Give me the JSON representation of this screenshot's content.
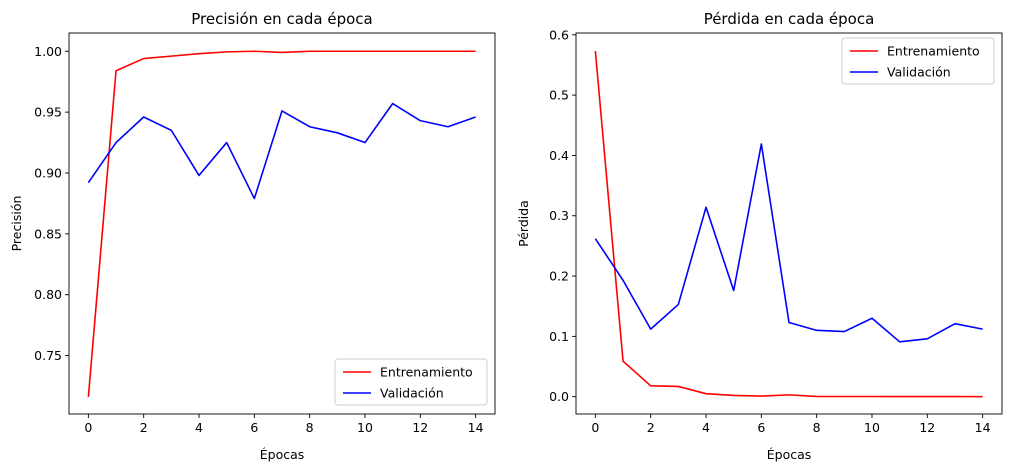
{
  "chart_data": [
    {
      "type": "line",
      "title": "Precisión en cada época",
      "xlabel": "Épocas",
      "ylabel": "Precisión",
      "x": [
        0,
        1,
        2,
        3,
        4,
        5,
        6,
        7,
        8,
        9,
        10,
        11,
        12,
        13,
        14
      ],
      "xticks": [
        0,
        2,
        4,
        6,
        8,
        10,
        12,
        14
      ],
      "yticks": [
        0.75,
        0.8,
        0.85,
        0.9,
        0.95,
        1.0
      ],
      "ytick_labels": [
        "0.75",
        "0.80",
        "0.85",
        "0.90",
        "0.95",
        "1.00"
      ],
      "xlim": [
        -0.7,
        14.7
      ],
      "ylim": [
        0.702,
        1.015
      ],
      "legend_position": "lower right",
      "series": [
        {
          "name": "Entrenamiento",
          "color": "#ff0000",
          "values": [
            0.716,
            0.984,
            0.994,
            0.996,
            0.998,
            0.9995,
            1.0,
            0.999,
            1.0,
            1.0,
            1.0,
            1.0,
            1.0,
            1.0,
            1.0
          ]
        },
        {
          "name": "Validación",
          "color": "#0000ff",
          "values": [
            0.892,
            0.925,
            0.946,
            0.935,
            0.898,
            0.925,
            0.879,
            0.951,
            0.938,
            0.933,
            0.925,
            0.957,
            0.943,
            0.938,
            0.946
          ]
        }
      ]
    },
    {
      "type": "line",
      "title": "Pérdida en cada época",
      "xlabel": "Épocas",
      "ylabel": "Pérdida",
      "x": [
        0,
        1,
        2,
        3,
        4,
        5,
        6,
        7,
        8,
        9,
        10,
        11,
        12,
        13,
        14
      ],
      "xticks": [
        0,
        2,
        4,
        6,
        8,
        10,
        12,
        14
      ],
      "yticks": [
        0.0,
        0.1,
        0.2,
        0.3,
        0.4,
        0.5,
        0.6
      ],
      "ytick_labels": [
        "0.0",
        "0.1",
        "0.2",
        "0.3",
        "0.4",
        "0.5",
        "0.6"
      ],
      "xlim": [
        -0.7,
        14.7
      ],
      "ylim": [
        -0.0287,
        0.603
      ],
      "legend_position": "upper right",
      "series": [
        {
          "name": "Entrenamiento",
          "color": "#ff0000",
          "values": [
            0.573,
            0.059,
            0.018,
            0.017,
            0.005,
            0.002,
            0.001,
            0.003,
            0.0005,
            0.0003,
            0.0003,
            0.0002,
            0.0002,
            0.0002,
            0.0001
          ]
        },
        {
          "name": "Validación",
          "color": "#0000ff",
          "values": [
            0.262,
            0.193,
            0.112,
            0.153,
            0.314,
            0.176,
            0.419,
            0.123,
            0.11,
            0.108,
            0.13,
            0.091,
            0.096,
            0.121,
            0.112
          ]
        }
      ]
    }
  ]
}
